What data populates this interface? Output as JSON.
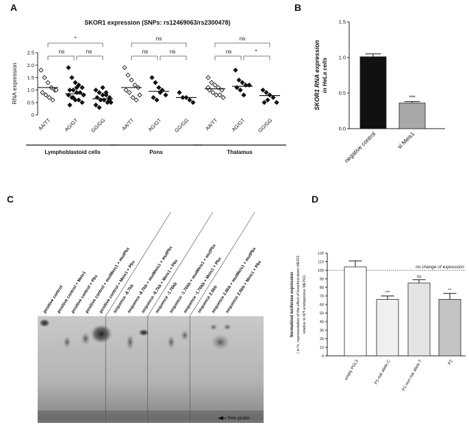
{
  "chart_data": [
    {
      "panel": "A",
      "type": "strip",
      "title": "SKOR1 expression (SNPs: rs12469063/rs2300478)",
      "y_label": "RNA expression",
      "ylim": [
        0,
        2.5
      ],
      "yticks": [
        0,
        0.5,
        {
          "value": 1,
          "label": "1.0"
        },
        1.5,
        {
          "value": 2,
          "label": "2.0"
        },
        2.5
      ],
      "markers": [
        "open-diamond",
        "filled-diamond",
        "filled-diamond"
      ],
      "groups": [
        {
          "name": "Lymphoblastoid cells",
          "categories": [
            "AA/TT",
            "AG/GT",
            "GG/GG"
          ],
          "values": [
            [
              1.8,
              1.5,
              1.3,
              1.1,
              1.0,
              0.9,
              0.8,
              0.7,
              0.6,
              1.0
            ],
            [
              1.9,
              1.5,
              1.3,
              1.2,
              1.1,
              1.0,
              1.0,
              0.9,
              0.9,
              0.8,
              0.8,
              0.7,
              0.6,
              0.6,
              0.5,
              0.4,
              0.7,
              1.1
            ],
            [
              1.0,
              0.9,
              0.8,
              0.8,
              0.7,
              0.7,
              0.6,
              0.6,
              0.5,
              0.5,
              0.4,
              0.3,
              1.1,
              0.9,
              0.6
            ]
          ],
          "means": [
            1.1,
            0.85,
            0.65
          ],
          "significance": [
            "*",
            "ns",
            "ns"
          ]
        },
        {
          "name": "Pons",
          "categories": [
            "AA/TT",
            "AG/GT",
            "GG/GG"
          ],
          "values": [
            [
              1.9,
              1.6,
              1.4,
              1.2,
              1.1,
              1.0,
              0.9,
              0.7,
              0.6,
              0.8
            ],
            [
              1.5,
              1.3,
              1.1,
              1.0,
              0.8,
              0.7,
              0.6,
              0.9
            ],
            [
              0.9,
              0.7,
              0.7,
              0.6,
              0.5
            ]
          ],
          "means": [
            1.1,
            0.95,
            0.7
          ],
          "significance": [
            "ns",
            "ns",
            "ns"
          ]
        },
        {
          "name": "Thalamus",
          "categories": [
            "AA/TT",
            "AG/GT",
            "GG/GG"
          ],
          "values": [
            [
              1.5,
              1.3,
              1.2,
              1.1,
              1.0,
              1.0,
              0.9,
              0.8,
              0.8,
              0.7,
              1.1
            ],
            [
              1.8,
              1.4,
              1.3,
              1.2,
              1.2,
              1.1,
              1.0,
              0.8
            ],
            [
              1.0,
              0.9,
              0.8,
              0.7,
              0.5,
              0.5,
              0.6
            ]
          ],
          "means": [
            1.05,
            1.15,
            0.78
          ],
          "significance": [
            "ns",
            "ns",
            "*"
          ]
        }
      ]
    },
    {
      "panel": "B",
      "type": "bar",
      "y_label": [
        "SKOR1 RNA expression",
        "in HeLa cells"
      ],
      "categories": [
        "negative control",
        "si Meis1"
      ],
      "values": [
        1.01,
        0.36
      ],
      "errors": [
        0.04,
        0.02
      ],
      "colors": [
        "#111111",
        "#a8a8a8"
      ],
      "annotations": [
        null,
        "***"
      ],
      "ylim": [
        0,
        1.5
      ],
      "yticks": [
        {
          "value": 0,
          "label": "0.0"
        },
        0.5,
        {
          "value": 1,
          "label": "1.0"
        },
        1.5
      ]
    },
    {
      "panel": "D",
      "type": "bar",
      "y_label": [
        "Normalized luciferase expression",
        "( in %, representation of the effect of knocked-down MEIS1",
        "relative to WT-endogenous MEIS1)"
      ],
      "categories": [
        "empty PGL3",
        "P1-risk allele C",
        "P1-non-risk allele T",
        "P2"
      ],
      "values": [
        104,
        66,
        85,
        66
      ],
      "errors": [
        7,
        4,
        4,
        7
      ],
      "colors": [
        "#ffffff",
        "#efefef",
        "#e4e4e4",
        "#c4c4c4"
      ],
      "annotations": [
        null,
        "***",
        "ns",
        "**"
      ],
      "reference": {
        "value": 100,
        "label": "no change of expression"
      },
      "ylim": [
        0,
        120
      ],
      "yticks": [
        0,
        10,
        20,
        30,
        40,
        50,
        60,
        70,
        80,
        90,
        100,
        110,
        120
      ]
    }
  ],
  "gel": {
    "panel": "C",
    "lanes": [
      "positive control",
      "positive control + Meis1",
      "positive control + Pbx",
      "positive control + mutMeis1 + mutPbx",
      "positive control + Meis1 + Pbx",
      "sequence -8.7kb",
      "sequence -8.7kb + mutMeis1 + mutPbx",
      "sequence -8.7kb + Meis1 + Pbx",
      "sequence -1.76kb",
      "sequence -1.76kb + mutMeis1 + mutPbx",
      "sequence -1.76kb + Meis1 + Pbx",
      "sequence 2.6kb",
      "sequence 2.6kb + mutMeis1 + mutPbx",
      "sequence 2.6kb + Meis1 + Pbx"
    ],
    "marker": "free probe"
  }
}
